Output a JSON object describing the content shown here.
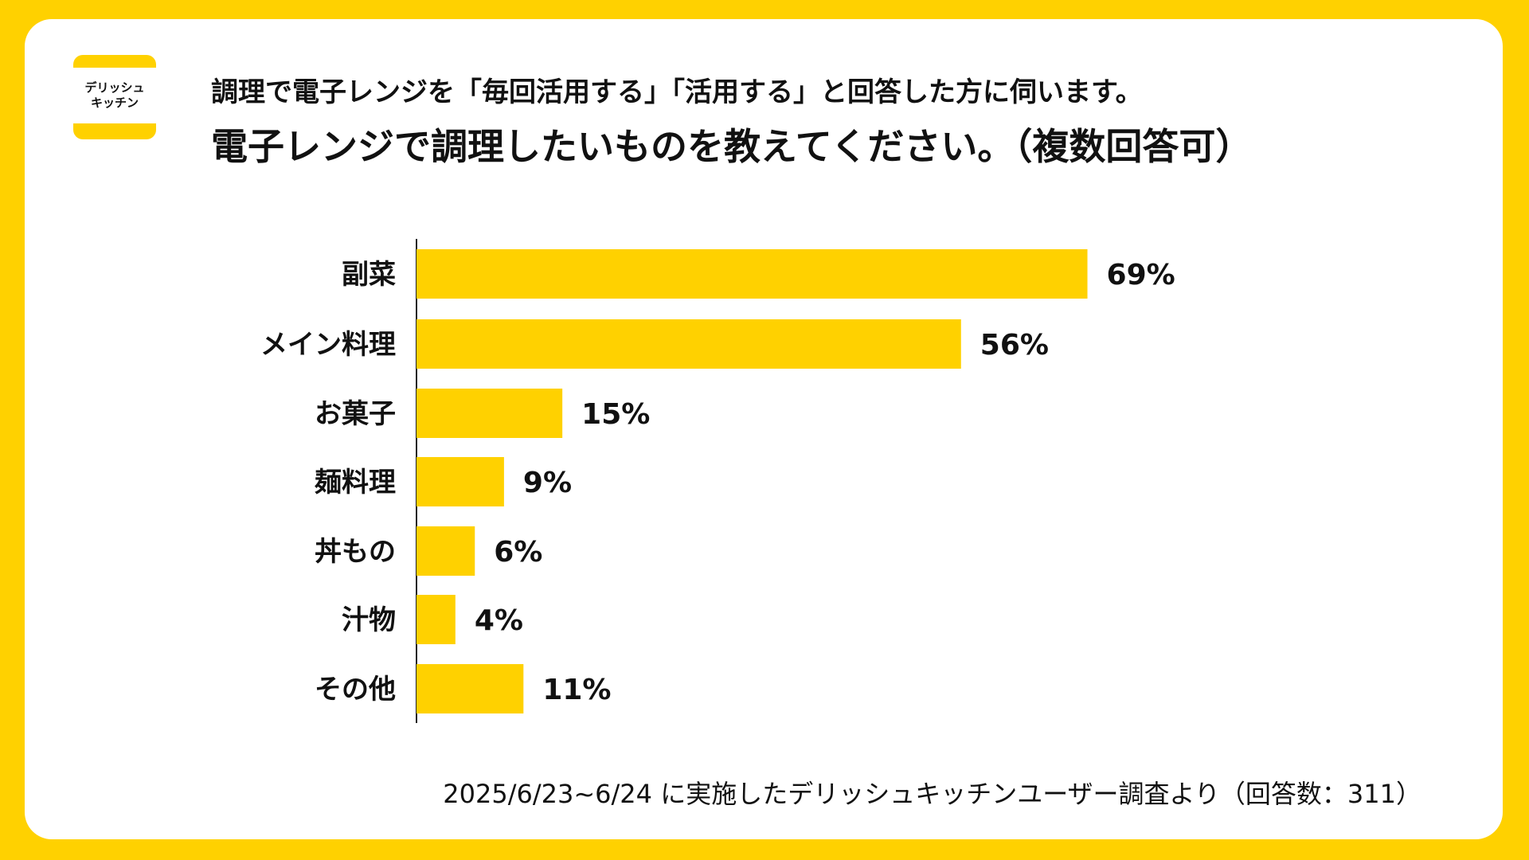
{
  "logo": {
    "line1": "デリッシュ",
    "line2": "キッチン"
  },
  "subtitle": "調理で電子レンジを「毎回活用する」「活用する」と回答した方に伺います。",
  "title": "電子レンジで調理したいものを教えてください。（複数回答可）",
  "chart_data": {
    "type": "bar",
    "orientation": "horizontal",
    "title": "電子レンジで調理したいものを教えてください。（複数回答可）",
    "categories": [
      "副菜",
      "メイン料理",
      "お菓子",
      "麺料理",
      "丼もの",
      "汁物",
      "その他"
    ],
    "values": [
      69,
      56,
      15,
      9,
      6,
      4,
      11
    ],
    "value_labels": [
      "69%",
      "56%",
      "15%",
      "9%",
      "6%",
      "4%",
      "11%"
    ],
    "unit": "%",
    "xlim": [
      0,
      100
    ],
    "bar_color": "#FFD100",
    "grid": false,
    "legend": "none"
  },
  "note": "2025/6/23~6/24 に実施したデリッシュキッチンユーザー調査より（回答数：311）"
}
